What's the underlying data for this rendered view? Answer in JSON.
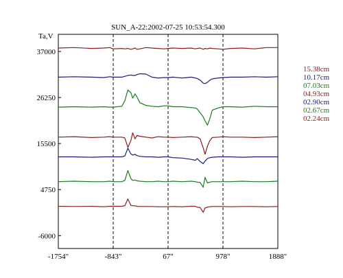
{
  "chart_data": {
    "type": "line",
    "title": "SUN_A-22:2002-07-25 10:53:54.300",
    "ylabel": "Ta,V",
    "xlabel": "",
    "x_ticks": [
      "-1754\"",
      "-843\"",
      "67\"",
      "978\"",
      "1888\""
    ],
    "x_range": [
      -1754,
      1888
    ],
    "y_ticks": [
      37000,
      26250,
      15500,
      4750,
      -6000
    ],
    "y_range": [
      -9000,
      41000
    ],
    "vlines": [
      -843,
      67,
      978
    ],
    "grid": false,
    "legend_position": "right",
    "x": [
      -1754,
      -1500,
      -1200,
      -1000,
      -900,
      -843,
      -700,
      -650,
      -600,
      -550,
      -520,
      -480,
      -450,
      -400,
      -300,
      -200,
      -100,
      0,
      67,
      150,
      300,
      450,
      520,
      550,
      600,
      650,
      680,
      720,
      760,
      800,
      900,
      978,
      1100,
      1300,
      1500,
      1700,
      1888
    ],
    "series": [
      {
        "name": "15.38cm",
        "color": "#8b1a1a",
        "values": [
          37800,
          37900,
          37700,
          37800,
          37900,
          37600,
          37700,
          37600,
          37700,
          37500,
          37600,
          37800,
          37500,
          37600,
          37900,
          37800,
          37700,
          37600,
          37700,
          37800,
          37700,
          37800,
          37600,
          37700,
          37800,
          37500,
          37700,
          37600,
          37800,
          37700,
          37600,
          37500,
          37700,
          37800,
          37600,
          37900,
          37900
        ]
      },
      {
        "name": "10.17cm",
        "color": "#1a1a7a",
        "values": [
          31000,
          31100,
          31000,
          30900,
          31100,
          31000,
          31000,
          31200,
          31400,
          31500,
          31400,
          31400,
          31600,
          31800,
          31700,
          31000,
          30800,
          30900,
          30900,
          31000,
          30800,
          31000,
          30800,
          30700,
          30300,
          29600,
          29500,
          29800,
          30300,
          30600,
          30800,
          30900,
          31000,
          31000,
          31100,
          31000,
          31100
        ]
      },
      {
        "name": "07.03cm",
        "color": "#1a7a1a",
        "values": [
          24000,
          24100,
          24000,
          24100,
          24000,
          24000,
          24200,
          25500,
          28000,
          27400,
          26100,
          27100,
          26400,
          25000,
          24400,
          24200,
          24100,
          24300,
          24300,
          24100,
          24100,
          23900,
          23800,
          23600,
          22700,
          21700,
          20800,
          19800,
          21300,
          23300,
          23800,
          24100,
          24100,
          24000,
          24200,
          24100,
          24100
        ]
      },
      {
        "name": "04.93cm",
        "color": "#8b1a1a",
        "values": [
          17000,
          17100,
          16900,
          17000,
          17100,
          17000,
          17000,
          16800,
          14600,
          16200,
          18000,
          16600,
          17400,
          17200,
          17000,
          16800,
          17100,
          17000,
          17000,
          16900,
          17000,
          17100,
          17000,
          17000,
          16600,
          14500,
          13000,
          14900,
          16200,
          16900,
          17000,
          17100,
          17000,
          17000,
          16900,
          17000,
          17100
        ]
      },
      {
        "name": "02.90cm",
        "color": "#1a1a7a",
        "values": [
          12400,
          12400,
          12300,
          12400,
          12400,
          12400,
          12400,
          12600,
          14400,
          13100,
          12800,
          13000,
          12700,
          12500,
          12400,
          12400,
          12300,
          12400,
          12400,
          12200,
          12100,
          11800,
          11600,
          12000,
          11300,
          10800,
          11400,
          12000,
          12200,
          12300,
          12400,
          12400,
          12400,
          12300,
          12400,
          12400,
          12400
        ]
      },
      {
        "name": "02.67cm",
        "color": "#1a7a1a",
        "values": [
          6600,
          6700,
          6600,
          6600,
          6700,
          6600,
          6600,
          6900,
          9200,
          7300,
          6900,
          7000,
          6800,
          6700,
          6600,
          6600,
          6700,
          6600,
          6600,
          6700,
          6600,
          6700,
          6600,
          6500,
          6400,
          5300,
          7600,
          6300,
          6500,
          6600,
          6600,
          6600,
          6600,
          6700,
          6600,
          6600,
          6700
        ]
      },
      {
        "name": "02.24cm",
        "color": "#8b1a1a",
        "values": [
          850,
          800,
          850,
          750,
          850,
          850,
          850,
          1000,
          2550,
          1050,
          1000,
          950,
          850,
          800,
          800,
          800,
          750,
          750,
          750,
          800,
          750,
          850,
          850,
          650,
          550,
          -550,
          450,
          650,
          750,
          800,
          800,
          800,
          750,
          800,
          800,
          750,
          800
        ]
      }
    ]
  }
}
